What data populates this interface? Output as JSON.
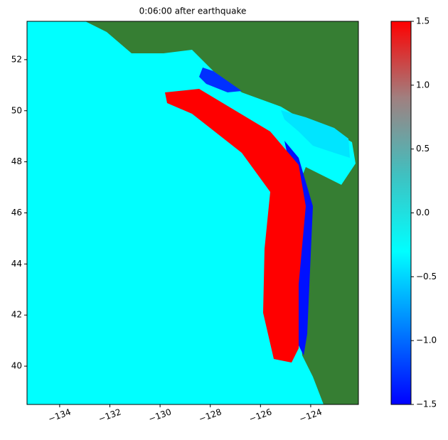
{
  "chart_data": {
    "type": "heatmap",
    "title": "0:06:00 after earthquake",
    "xlim": [
      -135.3,
      -122.1
    ],
    "xticks": [
      {
        "value": -134,
        "label": "−134"
      },
      {
        "value": -132,
        "label": "−132"
      },
      {
        "value": -130,
        "label": "−130"
      },
      {
        "value": -128,
        "label": "−128"
      },
      {
        "value": -126,
        "label": "−126"
      },
      {
        "value": -124,
        "label": "−124"
      }
    ],
    "ylim": [
      38.5,
      53.5
    ],
    "yticks": [
      40,
      42,
      44,
      46,
      48,
      50,
      52
    ],
    "colorbar": {
      "lim": [
        -1.5,
        1.5
      ],
      "ticks": [
        {
          "value": -1.5,
          "label": "−1.5"
        },
        {
          "value": -1.0,
          "label": "−1.0"
        },
        {
          "value": -0.5,
          "label": "−0.5"
        },
        {
          "value": 0,
          "label": "0.0"
        },
        0.5,
        {
          "value": 1.0,
          "label": "1.0"
        },
        1.5
      ],
      "colors": [
        "#0000ff",
        "#0080ff",
        "#00ffff",
        "#40c0c0",
        "#a08080",
        "#ff0000"
      ]
    }
  }
}
